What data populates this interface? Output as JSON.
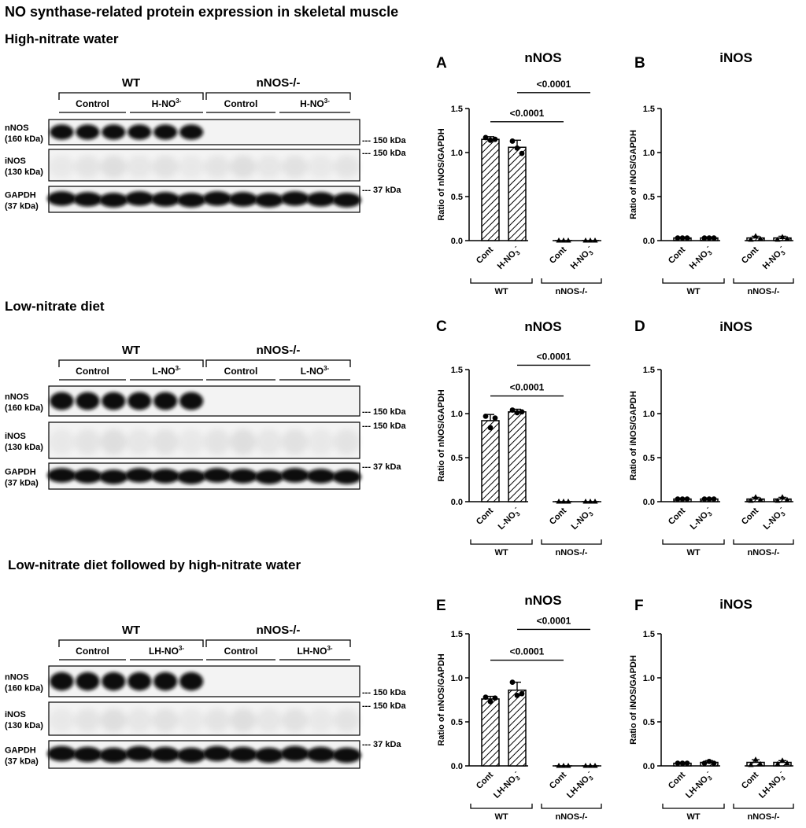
{
  "figure": {
    "title": "NO synthase-related protein expression in skeletal muscle",
    "colors": {
      "ink": "#000000",
      "background": "#ffffff",
      "blot_background": "#f2f2f2"
    },
    "blots": [
      {
        "heading": "High-nitrate water",
        "genotypes": [
          "WT",
          "nNOS-/-"
        ],
        "groups": [
          "Control",
          "H-NO",
          "Control",
          "H-NO"
        ],
        "group_suffix": [
          "",
          "3-",
          "",
          "3-"
        ],
        "rows": [
          {
            "name": "nNOS",
            "mw": "(160 kDa)",
            "marker": "--- 150 kDa"
          },
          {
            "name": "iNOS",
            "mw": "(130 kDa)",
            "marker": "--- 150 kDa"
          },
          {
            "name": "GAPDH",
            "mw": "(37 kDa)",
            "marker": "--- 37 kDa"
          }
        ]
      },
      {
        "heading": "Low-nitrate diet",
        "genotypes": [
          "WT",
          "nNOS-/-"
        ],
        "groups": [
          "Control",
          "L-NO",
          "Control",
          "L-NO"
        ],
        "group_suffix": [
          "",
          "3-",
          "",
          "3-"
        ],
        "rows": [
          {
            "name": "nNOS",
            "mw": "(160 kDa)",
            "marker": "--- 150 kDa"
          },
          {
            "name": "iNOS",
            "mw": "(130 kDa)",
            "marker": "--- 150 kDa"
          },
          {
            "name": "GAPDH",
            "mw": "(37 kDa)",
            "marker": "--- 37 kDa"
          }
        ]
      },
      {
        "heading": "Low-nitrate diet followed by high-nitrate water",
        "genotypes": [
          "WT",
          "nNOS-/-"
        ],
        "groups": [
          "Control",
          "LH-NO",
          "Control",
          "LH-NO"
        ],
        "group_suffix": [
          "",
          "3-",
          "",
          "3-"
        ],
        "rows": [
          {
            "name": "nNOS",
            "mw": "(160 kDa)",
            "marker": "--- 150 kDa"
          },
          {
            "name": "iNOS",
            "mw": "(130 kDa)",
            "marker": "--- 150 kDa"
          },
          {
            "name": "GAPDH",
            "mw": "(37 kDa)",
            "marker": "--- 37 kDa"
          }
        ]
      }
    ]
  },
  "chart_data": [
    {
      "panel": "A",
      "type": "bar",
      "title": "nNOS",
      "ylabel": "Ratio of nNOS/GAPDH",
      "ylim": [
        0,
        1.5
      ],
      "yticks": [
        "0.0",
        "0.5",
        "1.0",
        "1.5"
      ],
      "categories": [
        "Cont",
        "H-NO3-",
        "Cont",
        "H-NO3-"
      ],
      "category_labels": [
        {
          "base": "Cont",
          "sub": "",
          "sup": ""
        },
        {
          "base": "H-NO",
          "sub": "3",
          "sup": "-"
        },
        {
          "base": "Cont",
          "sub": "",
          "sup": ""
        },
        {
          "base": "H-NO",
          "sub": "3",
          "sup": "-"
        }
      ],
      "groups": [
        "WT",
        "nNOS-/-"
      ],
      "values": [
        1.15,
        1.06,
        0.0,
        0.0
      ],
      "errors": [
        0.03,
        0.08,
        0.0,
        0.0
      ],
      "points": [
        [
          1.17,
          1.14,
          1.15
        ],
        [
          1.13,
          1.05,
          0.99
        ],
        [
          0.0,
          0.0,
          0.0
        ],
        [
          0.0,
          0.0,
          0.0
        ]
      ],
      "markers": [
        "circle",
        "circle",
        "triangle",
        "triangle"
      ],
      "hatched": true,
      "comparisons": [
        {
          "from": 0,
          "to": 2,
          "label": "<0.0001",
          "y": 1.35
        },
        {
          "from": 1,
          "to": 3,
          "label": "<0.0001",
          "y": 1.68
        }
      ]
    },
    {
      "panel": "B",
      "type": "bar",
      "title": "iNOS",
      "ylabel": "Ratio of iNOS/GAPDH",
      "ylim": [
        0,
        1.5
      ],
      "yticks": [
        "0.0",
        "0.5",
        "1.0",
        "1.5"
      ],
      "categories": [
        "Cont",
        "H-NO3-",
        "Cont",
        "H-NO3-"
      ],
      "category_labels": [
        {
          "base": "Cont",
          "sub": "",
          "sup": ""
        },
        {
          "base": "H-NO",
          "sub": "3",
          "sup": "-"
        },
        {
          "base": "Cont",
          "sub": "",
          "sup": ""
        },
        {
          "base": "H-NO",
          "sub": "3",
          "sup": "-"
        }
      ],
      "groups": [
        "WT",
        "nNOS-/-"
      ],
      "values": [
        0.03,
        0.03,
        0.03,
        0.03
      ],
      "errors": [
        0.01,
        0.01,
        0.02,
        0.02
      ],
      "points": [
        [
          0.03,
          0.03,
          0.03
        ],
        [
          0.03,
          0.03,
          0.03
        ],
        [
          0.01,
          0.05,
          0.02
        ],
        [
          0.01,
          0.04,
          0.02
        ]
      ],
      "markers": [
        "circle",
        "circle",
        "triangle",
        "triangle"
      ],
      "hatched": true,
      "comparisons": []
    },
    {
      "panel": "C",
      "type": "bar",
      "title": "nNOS",
      "ylabel": "Ratio of nNOS/GAPDH",
      "ylim": [
        0,
        1.5
      ],
      "yticks": [
        "0.0",
        "0.5",
        "1.0",
        "1.5"
      ],
      "categories": [
        "Cont",
        "L-NO3-",
        "Cont",
        "L-NO3-"
      ],
      "category_labels": [
        {
          "base": "Cont",
          "sub": "",
          "sup": ""
        },
        {
          "base": "L-NO",
          "sub": "3",
          "sup": "-"
        },
        {
          "base": "Cont",
          "sub": "",
          "sup": ""
        },
        {
          "base": "L-NO",
          "sub": "3",
          "sup": "-"
        }
      ],
      "groups": [
        "WT",
        "nNOS-/-"
      ],
      "values": [
        0.92,
        1.02,
        0.0,
        0.0
      ],
      "errors": [
        0.07,
        0.03,
        0.0,
        0.0
      ],
      "points": [
        [
          0.97,
          0.84,
          0.95
        ],
        [
          1.04,
          1.01,
          1.02
        ],
        [
          0.0,
          0.0,
          0.0
        ],
        [
          0.0,
          0.0,
          0.0
        ]
      ],
      "markers": [
        "circle",
        "circle",
        "triangle",
        "triangle"
      ],
      "hatched": true,
      "comparisons": [
        {
          "from": 0,
          "to": 2,
          "label": "<0.0001",
          "y": 1.2
        },
        {
          "from": 1,
          "to": 3,
          "label": "<0.0001",
          "y": 1.55
        }
      ]
    },
    {
      "panel": "D",
      "type": "bar",
      "title": "iNOS",
      "ylabel": "Ratio of iNOS/GAPDH",
      "ylim": [
        0,
        1.5
      ],
      "yticks": [
        "0.0",
        "0.5",
        "1.0",
        "1.5"
      ],
      "categories": [
        "Cont",
        "L-NO3-",
        "Cont",
        "L-NO3-"
      ],
      "category_labels": [
        {
          "base": "Cont",
          "sub": "",
          "sup": ""
        },
        {
          "base": "L-NO",
          "sub": "3",
          "sup": "-"
        },
        {
          "base": "Cont",
          "sub": "",
          "sup": ""
        },
        {
          "base": "L-NO",
          "sub": "3",
          "sup": "-"
        }
      ],
      "groups": [
        "WT",
        "nNOS-/-"
      ],
      "values": [
        0.03,
        0.03,
        0.03,
        0.03
      ],
      "errors": [
        0.01,
        0.01,
        0.02,
        0.02
      ],
      "points": [
        [
          0.03,
          0.03,
          0.03
        ],
        [
          0.03,
          0.03,
          0.03
        ],
        [
          0.01,
          0.05,
          0.02
        ],
        [
          0.01,
          0.05,
          0.02
        ]
      ],
      "markers": [
        "circle",
        "circle",
        "triangle",
        "triangle"
      ],
      "hatched": true,
      "comparisons": []
    },
    {
      "panel": "E",
      "type": "bar",
      "title": "nNOS",
      "ylabel": "Ratio of nNOS/GAPDH",
      "ylim": [
        0,
        1.5
      ],
      "yticks": [
        "0.0",
        "0.5",
        "1.0",
        "1.5"
      ],
      "categories": [
        "Cont",
        "LH-NO3-",
        "Cont",
        "LH-NO3-"
      ],
      "category_labels": [
        {
          "base": "Cont",
          "sub": "",
          "sup": ""
        },
        {
          "base": "LH-NO",
          "sub": "3",
          "sup": "-"
        },
        {
          "base": "Cont",
          "sub": "",
          "sup": ""
        },
        {
          "base": "LH-NO",
          "sub": "3",
          "sup": "-"
        }
      ],
      "groups": [
        "WT",
        "nNOS-/-"
      ],
      "values": [
        0.76,
        0.86,
        0.0,
        0.0
      ],
      "errors": [
        0.03,
        0.09,
        0.0,
        0.0
      ],
      "points": [
        [
          0.78,
          0.73,
          0.77
        ],
        [
          0.95,
          0.8,
          0.82
        ],
        [
          0.0,
          0.0,
          0.0
        ],
        [
          0.0,
          0.0,
          0.0
        ]
      ],
      "markers": [
        "circle",
        "circle",
        "triangle",
        "triangle"
      ],
      "hatched": true,
      "comparisons": [
        {
          "from": 0,
          "to": 2,
          "label": "<0.0001",
          "y": 1.2
        },
        {
          "from": 1,
          "to": 3,
          "label": "<0.0001",
          "y": 1.55
        }
      ]
    },
    {
      "panel": "F",
      "type": "bar",
      "title": "iNOS",
      "ylabel": "Ratio of iNOS/GAPDH",
      "ylim": [
        0,
        1.5
      ],
      "yticks": [
        "0.0",
        "0.5",
        "1.0",
        "1.5"
      ],
      "categories": [
        "Cont",
        "LH-NO3-",
        "Cont",
        "LH-NO3-"
      ],
      "category_labels": [
        {
          "base": "Cont",
          "sub": "",
          "sup": ""
        },
        {
          "base": "LH-NO",
          "sub": "3",
          "sup": "-"
        },
        {
          "base": "Cont",
          "sub": "",
          "sup": ""
        },
        {
          "base": "LH-NO",
          "sub": "3",
          "sup": "-"
        }
      ],
      "groups": [
        "WT",
        "nNOS-/-"
      ],
      "values": [
        0.03,
        0.04,
        0.04,
        0.04
      ],
      "errors": [
        0.01,
        0.02,
        0.03,
        0.02
      ],
      "points": [
        [
          0.03,
          0.03,
          0.03
        ],
        [
          0.03,
          0.05,
          0.03
        ],
        [
          0.01,
          0.07,
          0.02
        ],
        [
          0.02,
          0.06,
          0.03
        ]
      ],
      "markers": [
        "circle",
        "circle",
        "triangle",
        "triangle"
      ],
      "hatched": true,
      "comparisons": []
    }
  ]
}
